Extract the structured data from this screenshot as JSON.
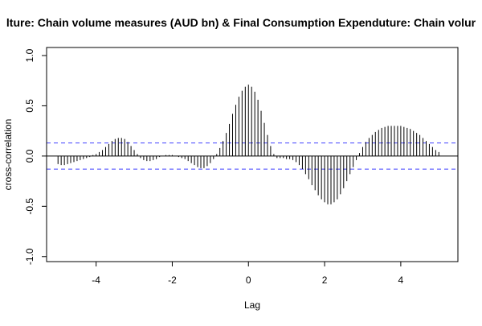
{
  "chart_data": {
    "type": "bar",
    "title": "lture: Chain volume measures (AUD bn) & Final Consumption Expenduture: Chain volur",
    "xlabel": "Lag",
    "ylabel": "cross-correlation",
    "xlim": [
      -5.3,
      5.5
    ],
    "ylim": [
      -1.05,
      1.08
    ],
    "xticks": [
      -4,
      -2,
      0,
      2,
      4
    ],
    "xtick_labels": [
      "-4",
      "-2",
      "0",
      "2",
      "4"
    ],
    "yticks": [
      -1.0,
      -0.5,
      0.0,
      0.5,
      1.0
    ],
    "ytick_labels": [
      "-1.0",
      "-0.5",
      "0.0",
      "0.5",
      "1.0"
    ],
    "confidence_band": [
      -0.13,
      0.13
    ],
    "lag_step": 0.0833,
    "x": [
      -5.0,
      -4.917,
      -4.833,
      -4.75,
      -4.667,
      -4.583,
      -4.5,
      -4.417,
      -4.333,
      -4.25,
      -4.167,
      -4.083,
      -4.0,
      -3.917,
      -3.833,
      -3.75,
      -3.667,
      -3.583,
      -3.5,
      -3.417,
      -3.333,
      -3.25,
      -3.167,
      -3.083,
      -3.0,
      -2.917,
      -2.833,
      -2.75,
      -2.667,
      -2.583,
      -2.5,
      -2.417,
      -2.333,
      -2.25,
      -2.167,
      -2.083,
      -2.0,
      -1.917,
      -1.833,
      -1.75,
      -1.667,
      -1.583,
      -1.5,
      -1.417,
      -1.333,
      -1.25,
      -1.167,
      -1.083,
      -1.0,
      -0.917,
      -0.833,
      -0.75,
      -0.667,
      -0.583,
      -0.5,
      -0.417,
      -0.333,
      -0.25,
      -0.167,
      -0.083,
      0.0,
      0.083,
      0.167,
      0.25,
      0.333,
      0.417,
      0.5,
      0.583,
      0.667,
      0.75,
      0.833,
      0.917,
      1.0,
      1.083,
      1.167,
      1.25,
      1.333,
      1.417,
      1.5,
      1.583,
      1.667,
      1.75,
      1.833,
      1.917,
      2.0,
      2.083,
      2.167,
      2.25,
      2.333,
      2.417,
      2.5,
      2.583,
      2.667,
      2.75,
      2.833,
      2.917,
      3.0,
      3.083,
      3.167,
      3.25,
      3.333,
      3.417,
      3.5,
      3.583,
      3.667,
      3.75,
      3.833,
      3.917,
      4.0,
      4.083,
      4.167,
      4.25,
      4.333,
      4.417,
      4.5,
      4.583,
      4.667,
      4.75,
      4.833,
      4.917,
      5.0
    ],
    "values": [
      -0.08,
      -0.09,
      -0.09,
      -0.08,
      -0.07,
      -0.06,
      -0.05,
      -0.04,
      -0.03,
      -0.02,
      -0.01,
      0.01,
      0.02,
      0.04,
      0.06,
      0.09,
      0.12,
      0.15,
      0.17,
      0.18,
      0.18,
      0.17,
      0.14,
      0.1,
      0.06,
      0.02,
      -0.02,
      -0.04,
      -0.05,
      -0.05,
      -0.04,
      -0.03,
      -0.01,
      0.0,
      0.01,
      0.01,
      0.01,
      0.0,
      -0.01,
      -0.02,
      -0.03,
      -0.05,
      -0.07,
      -0.09,
      -0.11,
      -0.12,
      -0.12,
      -0.1,
      -0.07,
      -0.03,
      0.02,
      0.08,
      0.15,
      0.23,
      0.32,
      0.42,
      0.51,
      0.59,
      0.65,
      0.69,
      0.71,
      0.69,
      0.64,
      0.56,
      0.45,
      0.33,
      0.21,
      0.1,
      0.02,
      -0.02,
      -0.02,
      -0.02,
      -0.03,
      -0.03,
      -0.04,
      -0.06,
      -0.09,
      -0.13,
      -0.18,
      -0.23,
      -0.29,
      -0.34,
      -0.39,
      -0.43,
      -0.46,
      -0.48,
      -0.48,
      -0.46,
      -0.43,
      -0.38,
      -0.32,
      -0.25,
      -0.18,
      -0.11,
      -0.04,
      0.03,
      0.09,
      0.14,
      0.18,
      0.21,
      0.24,
      0.26,
      0.28,
      0.29,
      0.3,
      0.3,
      0.3,
      0.3,
      0.3,
      0.29,
      0.28,
      0.27,
      0.25,
      0.23,
      0.21,
      0.18,
      0.15,
      0.12,
      0.09,
      0.06,
      0.04
    ],
    "grid": false,
    "colors": {
      "spike": "#000000",
      "zero_line": "#000000",
      "confidence_band": "#4040ff",
      "frame": "#000000"
    }
  }
}
